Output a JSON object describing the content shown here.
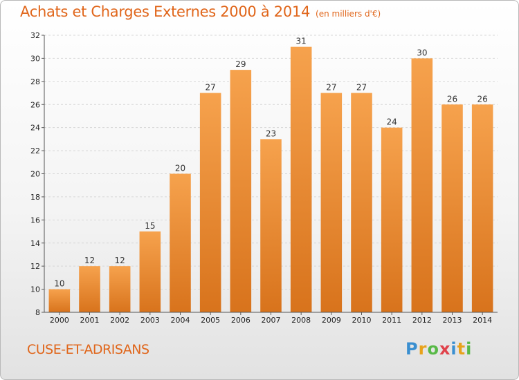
{
  "header": {
    "title": "Achats et Charges Externes 2000 à 2014",
    "unit": "(en milliers d'€)"
  },
  "footer": {
    "town": "CUSE-ET-ADRISANS",
    "logo": [
      "P",
      "r",
      "o",
      "x",
      "i",
      "t",
      "i"
    ],
    "logo_colors": [
      "#3a8fd0",
      "#e8a21a",
      "#58b947",
      "#e0424b",
      "#3a8fd0",
      "#e8a21a",
      "#58b947"
    ]
  },
  "colors": {
    "bar_light": "#f6a24d",
    "bar_dark": "#d8731c",
    "accent": "#e0661b"
  },
  "chart_data": {
    "type": "bar",
    "title": "Achats et Charges Externes 2000 à 2014",
    "xlabel": "",
    "ylabel": "",
    "categories": [
      "2000",
      "2001",
      "2002",
      "2003",
      "2004",
      "2005",
      "2006",
      "2007",
      "2008",
      "2009",
      "2010",
      "2011",
      "2012",
      "2013",
      "2014"
    ],
    "values": [
      10,
      12,
      12,
      15,
      20,
      27,
      29,
      23,
      31,
      27,
      27,
      24,
      30,
      26,
      26
    ],
    "ylim": [
      8,
      32
    ],
    "yticks": [
      8,
      10,
      12,
      14,
      16,
      18,
      20,
      22,
      24,
      26,
      28,
      30,
      32
    ],
    "grid": true,
    "legend": "none"
  }
}
